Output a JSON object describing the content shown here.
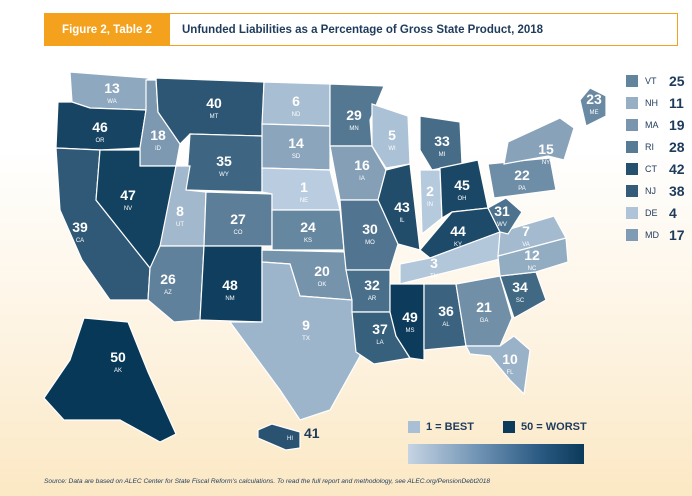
{
  "header": {
    "figure_label": "Figure 2, Table 2",
    "title": "Unfunded Liabilities as a Percentage of Gross State Product, 2018"
  },
  "colors": {
    "accent": "#f4a21d",
    "best": "#a9bfd6",
    "worst": "#0b3a5a",
    "text": "#1f3b5c"
  },
  "states": [
    {
      "abbr": "WA",
      "value": "13"
    },
    {
      "abbr": "OR",
      "value": "46"
    },
    {
      "abbr": "CA",
      "value": "39"
    },
    {
      "abbr": "ID",
      "value": "18"
    },
    {
      "abbr": "NV",
      "value": "47"
    },
    {
      "abbr": "MT",
      "value": "40"
    },
    {
      "abbr": "WY",
      "value": "35"
    },
    {
      "abbr": "UT",
      "value": "8"
    },
    {
      "abbr": "AZ",
      "value": "26"
    },
    {
      "abbr": "CO",
      "value": "27"
    },
    {
      "abbr": "NM",
      "value": "48"
    },
    {
      "abbr": "ND",
      "value": "6"
    },
    {
      "abbr": "SD",
      "value": "14"
    },
    {
      "abbr": "NE",
      "value": "1"
    },
    {
      "abbr": "KS",
      "value": "24"
    },
    {
      "abbr": "OK",
      "value": "20"
    },
    {
      "abbr": "TX",
      "value": "9"
    },
    {
      "abbr": "MN",
      "value": "29"
    },
    {
      "abbr": "IA",
      "value": "16"
    },
    {
      "abbr": "MO",
      "value": "30"
    },
    {
      "abbr": "AR",
      "value": "32"
    },
    {
      "abbr": "LA",
      "value": "37"
    },
    {
      "abbr": "WI",
      "value": "5"
    },
    {
      "abbr": "IL",
      "value": "43"
    },
    {
      "abbr": "MI",
      "value": "33"
    },
    {
      "abbr": "IN",
      "value": "2"
    },
    {
      "abbr": "OH",
      "value": "45"
    },
    {
      "abbr": "KY",
      "value": "44"
    },
    {
      "abbr": "TN",
      "value": "3"
    },
    {
      "abbr": "MS",
      "value": "49"
    },
    {
      "abbr": "AL",
      "value": "36"
    },
    {
      "abbr": "GA",
      "value": "21"
    },
    {
      "abbr": "FL",
      "value": "10"
    },
    {
      "abbr": "SC",
      "value": "34"
    },
    {
      "abbr": "NC",
      "value": "12"
    },
    {
      "abbr": "VA",
      "value": "7"
    },
    {
      "abbr": "WV",
      "value": "31"
    },
    {
      "abbr": "PA",
      "value": "22"
    },
    {
      "abbr": "NY",
      "value": "15"
    },
    {
      "abbr": "ME",
      "value": "23"
    },
    {
      "abbr": "AK",
      "value": "50"
    },
    {
      "abbr": "HI",
      "value": "41"
    }
  ],
  "small_states": [
    {
      "abbr": "VT",
      "value": "25"
    },
    {
      "abbr": "NH",
      "value": "11"
    },
    {
      "abbr": "MA",
      "value": "19"
    },
    {
      "abbr": "RI",
      "value": "28"
    },
    {
      "abbr": "CT",
      "value": "42"
    },
    {
      "abbr": "NJ",
      "value": "38"
    },
    {
      "abbr": "DE",
      "value": "4"
    },
    {
      "abbr": "MD",
      "value": "17"
    }
  ],
  "legend": {
    "best_label": "1 = BEST",
    "worst_label": "50 = WORST"
  },
  "source": "Source: Data are based on ALEC Center for State Fiscal Reform's calculations. To read the full report and methodology, see ALEC.org/PensionDebt2018"
}
